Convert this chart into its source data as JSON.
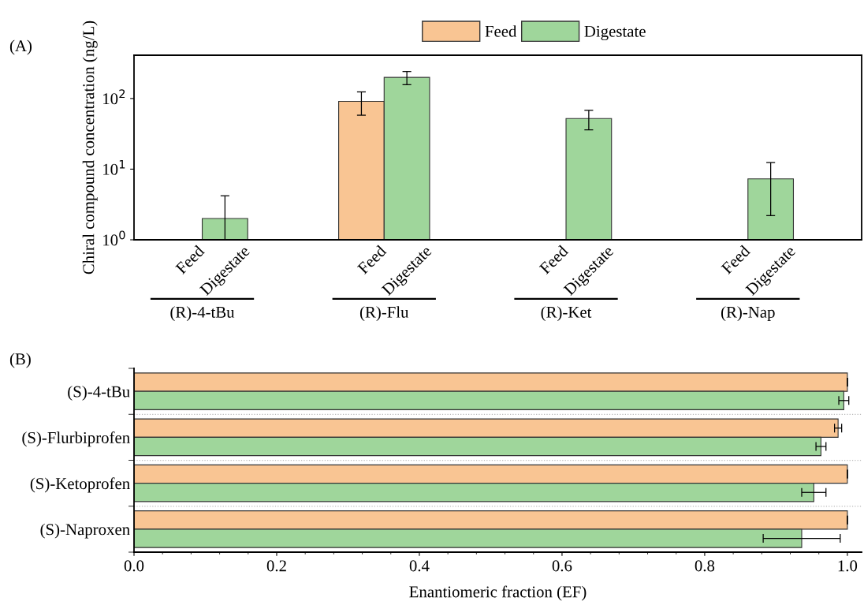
{
  "chart_data": [
    {
      "type": "bar",
      "title": "(A)",
      "ylabel": "Chiral compound concentration (ng/L)",
      "categories": [
        "Feed",
        "Digestate",
        "Feed",
        "Digestate",
        "Feed",
        "Digestate",
        "Feed",
        "Digestate"
      ],
      "annotations": [
        "(R)-4-tBu",
        "(R)-Flu",
        "(R)-Ket",
        "(R)-Nap"
      ],
      "series": [
        {
          "name": "Feed",
          "color": "#f9c593",
          "values": [
            null,
            null,
            91,
            null,
            null,
            null,
            null,
            null
          ],
          "errors": [
            null,
            null,
            33,
            null,
            null,
            null,
            null,
            null
          ]
        },
        {
          "name": "Digestate",
          "color": "#9fd69b",
          "values": [
            null,
            2.0,
            null,
            199,
            null,
            52,
            null,
            7.3
          ],
          "errors": [
            null,
            [
              1,
              4.2
            ],
            null,
            42,
            null,
            16,
            null,
            5.1
          ]
        }
      ],
      "log": "y",
      "ylim": [
        1,
        410
      ],
      "yticks": [
        {
          "value": 1,
          "label": "10$^{0}$"
        },
        {
          "value": 10,
          "label": "10$^{1}$"
        },
        {
          "value": 100,
          "label": "10$^{2}$"
        }
      ],
      "legend": "top"
    },
    {
      "type": "bar",
      "title": "(B)",
      "xlabel": "Enantiomeric fraction (EF)",
      "orientation": "horizontal",
      "categories": [
        "(S)-4-tBu",
        "(S)-Flurbiprofen",
        "(S)-Ketoprofen",
        "(S)-Naproxen"
      ],
      "series": [
        {
          "color": "#f9c593",
          "values": [
            1.0,
            0.987,
            1.0,
            1.0
          ],
          "errors": [
            null,
            0.005,
            null,
            null
          ]
        },
        {
          "color": "#9fd69b",
          "values": [
            0.995,
            0.963,
            0.953,
            0.936
          ],
          "errors": [
            0.007,
            0.007,
            0.017,
            0.054
          ]
        }
      ],
      "xlim": [
        0,
        1.02
      ],
      "xticks": [
        {
          "value": 0,
          "label": "0.0"
        },
        {
          "value": 0.2,
          "label": "0.2"
        },
        {
          "value": 0.4,
          "label": "0.4"
        },
        {
          "value": 0.6,
          "label": "0.6"
        },
        {
          "value": 0.8,
          "label": "0.8"
        },
        {
          "value": 1.0,
          "label": "1.0"
        }
      ],
      "grid": "y",
      "legend": false
    }
  ]
}
